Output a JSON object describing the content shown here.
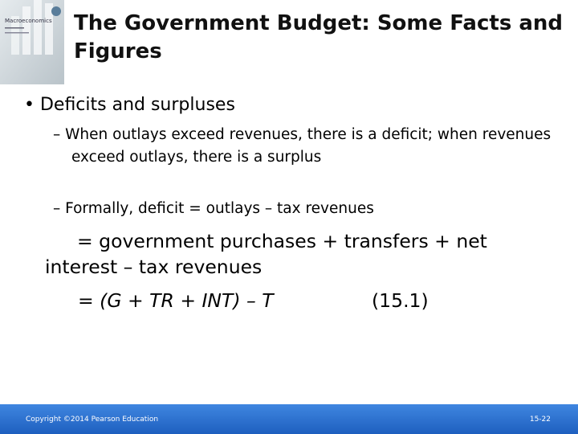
{
  "cover": {
    "title": "Macroeconomics"
  },
  "header": {
    "title": "The Government Budget: Some Facts and Figures"
  },
  "content": {
    "bullet": "• Deficits and surpluses",
    "sub_bullets": [
      "– When outlays exceed revenues, there is a deficit; when revenues exceed outlays, there is a surplus",
      "– Formally, deficit = outlays – tax revenues"
    ],
    "equation_lines": [
      "= government purchases + transfers + net interest – tax revenues",
      "= (G + TR + INT) – T"
    ],
    "equation_number": "(15.1)"
  },
  "footer": {
    "copyright": "Copyright ©2014 Pearson Education",
    "page": "15-22"
  }
}
